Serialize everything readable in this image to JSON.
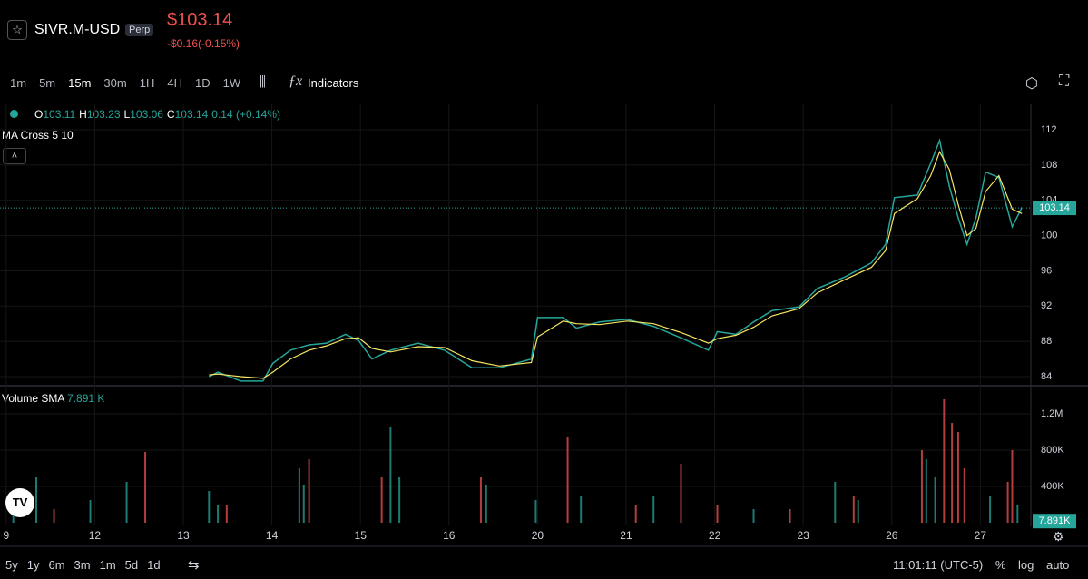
{
  "header": {
    "symbol": "SIVR.M-USD",
    "badge": "Perp",
    "price": "$103.14",
    "change": "-$0.16(-0.15%)"
  },
  "toolbar": {
    "intervals": [
      "1m",
      "5m",
      "15m",
      "30m",
      "1H",
      "4H",
      "1D",
      "1W"
    ],
    "indicators": "Indicators"
  },
  "legend": {
    "ohlc": [
      {
        "key": "O",
        "value": "103.11"
      },
      {
        "key": "H",
        "value": "103.23"
      },
      {
        "key": "L",
        "value": "103.06"
      },
      {
        "key": "C",
        "value": "103.14"
      }
    ],
    "change": "0.14 (+0.14%)",
    "study": "MA Cross 5 10",
    "volume_study": "Volume SMA",
    "volume_value": "7.891 K"
  },
  "chart_data": [
    {
      "type": "line",
      "xlim": [
        -0.07,
        11.56
      ],
      "xticks": [
        {
          "value": 0,
          "label": "9"
        },
        {
          "value": 1,
          "label": "12"
        },
        {
          "value": 2,
          "label": "13"
        },
        {
          "value": 3,
          "label": "14"
        },
        {
          "value": 4,
          "label": "15"
        },
        {
          "value": 5,
          "label": "16"
        },
        {
          "value": 6,
          "label": "20"
        },
        {
          "value": 7,
          "label": "21"
        },
        {
          "value": 8,
          "label": "22"
        },
        {
          "value": 9,
          "label": "23"
        },
        {
          "value": 10,
          "label": "26"
        },
        {
          "value": 11,
          "label": "27"
        }
      ],
      "ylim": [
        83.28,
        113.34
      ],
      "yticks": [
        84,
        88,
        92,
        96,
        100,
        104,
        108,
        112
      ],
      "grid": true,
      "last_price": 103.14,
      "x": [
        2.29,
        2.39,
        2.65,
        2.9,
        3.01,
        3.21,
        3.42,
        3.62,
        3.83,
        3.98,
        4.13,
        4.34,
        4.65,
        4.95,
        5.26,
        5.57,
        5.93,
        6.0,
        6.29,
        6.44,
        6.7,
        7.01,
        7.31,
        7.62,
        7.93,
        8.03,
        8.24,
        8.44,
        8.65,
        8.95,
        9.16,
        9.47,
        9.77,
        9.93,
        10.03,
        10.29,
        10.44,
        10.54,
        10.65,
        10.75,
        10.85,
        10.95,
        11.06,
        11.21,
        11.36,
        11.47
      ],
      "series": [
        {
          "color": "#26a69a",
          "values": [
            84,
            84.5,
            83.5,
            83.5,
            85.5,
            87,
            87.6,
            87.8,
            88.8,
            88.1,
            86,
            87,
            87.8,
            87,
            85,
            85,
            86,
            90.7,
            90.7,
            89.5,
            90.2,
            90.5,
            89.7,
            88.4,
            87,
            89.1,
            88.8,
            90.2,
            91.5,
            91.9,
            94,
            95.3,
            96.9,
            99,
            104.3,
            104.6,
            108.2,
            110.8,
            105.6,
            102,
            99,
            102,
            107.2,
            106.6,
            101,
            103.2
          ]
        },
        {
          "color": "#f5e663",
          "values": [
            84.2,
            84.3,
            84,
            83.8,
            84.5,
            86,
            87,
            87.5,
            88.3,
            88.4,
            87.2,
            86.8,
            87.4,
            87.3,
            85.8,
            85.2,
            85.6,
            88.5,
            90.3,
            90,
            89.9,
            90.3,
            90,
            89,
            87.8,
            88.3,
            88.7,
            89.6,
            90.9,
            91.7,
            93.5,
            95,
            96.4,
            98.3,
            102.5,
            104.2,
            106.8,
            109.5,
            107.5,
            103.5,
            100,
            100.8,
            105,
            106.8,
            103,
            102.5
          ]
        }
      ]
    },
    {
      "type": "bar",
      "xlim": [
        -0.07,
        11.56
      ],
      "ylim": [
        -20000,
        1460000
      ],
      "yticks": [
        {
          "value": 400000,
          "label": "400K"
        },
        {
          "value": 800000,
          "label": "800K"
        },
        {
          "value": 1200000,
          "label": "1.2M"
        }
      ],
      "sma": {
        "value": 7891,
        "label": "7.891K"
      },
      "series": [
        {
          "color": "#26a69a",
          "x": [
            0.08,
            0.34,
            0.95,
            1.36,
            2.29,
            2.39,
            3.31,
            3.36,
            4.34,
            4.44,
            5.42,
            5.98,
            6.49,
            7.31,
            8.44,
            9.36,
            9.62,
            10.39,
            10.49,
            11.11,
            11.42
          ],
          "values": [
            200000,
            500000,
            250000,
            450000,
            350000,
            200000,
            600000,
            420000,
            1050000,
            500000,
            420000,
            250000,
            300000,
            300000,
            150000,
            450000,
            250000,
            700000,
            500000,
            300000,
            200000
          ]
        },
        {
          "color": "#ef5350",
          "x": [
            0.54,
            1.57,
            2.49,
            3.42,
            4.24,
            5.36,
            6.34,
            7.11,
            7.62,
            8.03,
            8.85,
            9.57,
            10.34,
            10.59,
            10.68,
            10.75,
            10.82,
            11.31,
            11.36
          ],
          "values": [
            150000,
            780000,
            200000,
            700000,
            500000,
            500000,
            950000,
            200000,
            650000,
            200000,
            150000,
            300000,
            800000,
            1360000,
            1100000,
            1000000,
            600000,
            450000,
            800000
          ]
        }
      ]
    }
  ],
  "bottom_bar": {
    "ranges": [
      "5y",
      "1y",
      "6m",
      "3m",
      "1m",
      "5d",
      "1d"
    ],
    "time": "11:01:11 (UTC-5)",
    "percent": "%",
    "log": "log",
    "auto": "auto"
  }
}
